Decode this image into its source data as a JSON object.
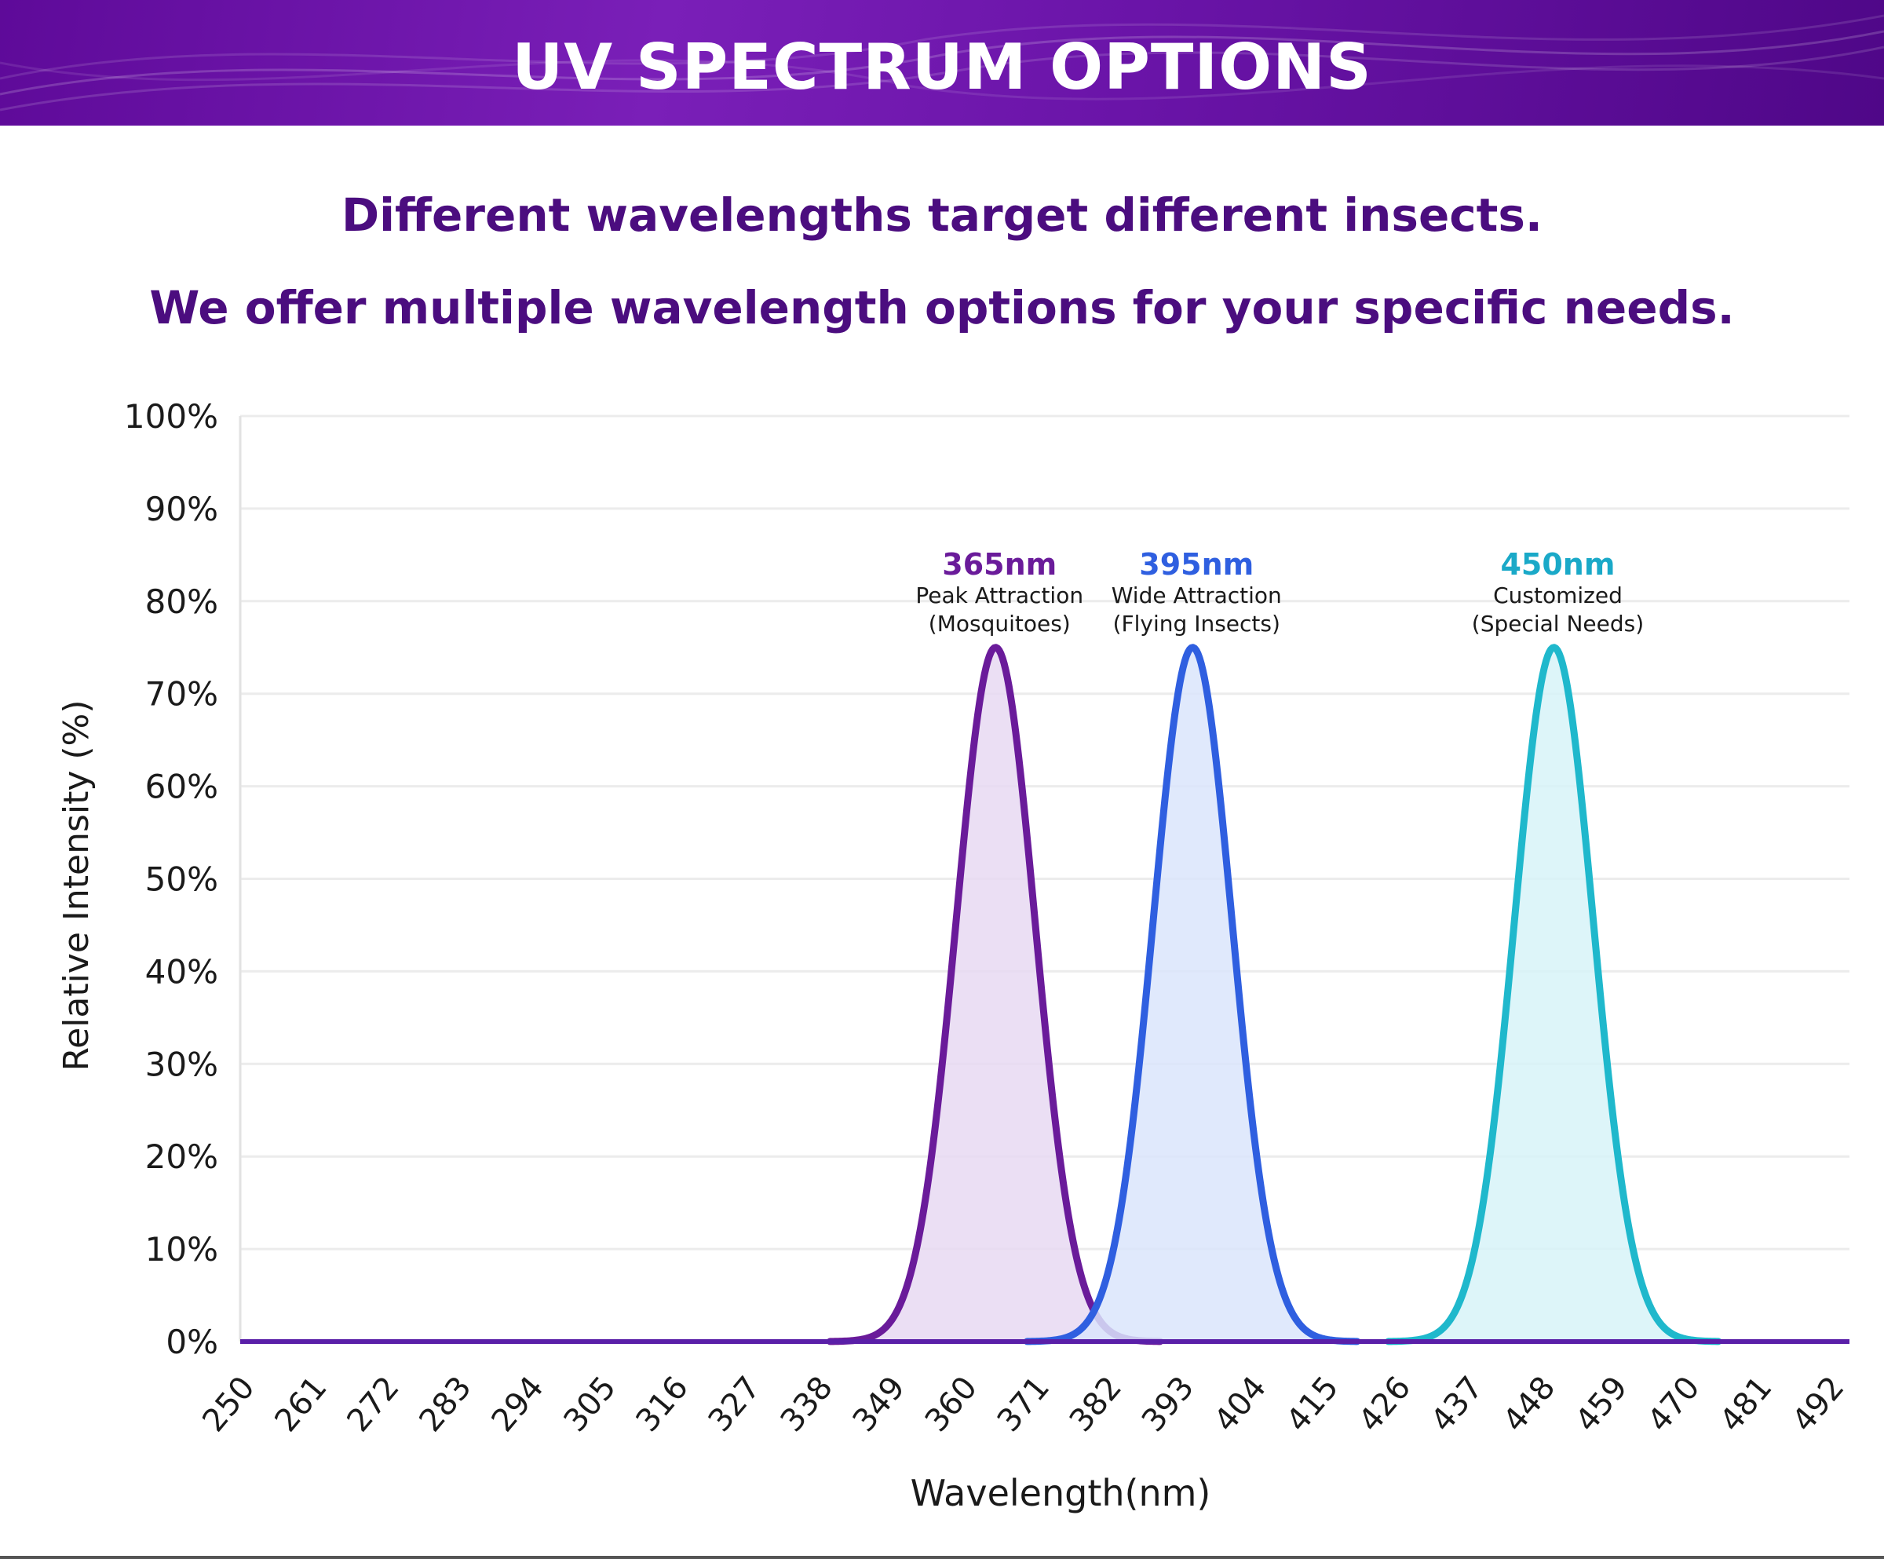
{
  "banner": {
    "title": "UV SPECTRUM OPTIONS"
  },
  "subtitle": {
    "line1": "Different wavelengths target different insects.",
    "line2": "We offer multiple wavelength options for your specific needs."
  },
  "chart_data": {
    "type": "area",
    "title": "",
    "xlabel": "Wavelength(nm)",
    "ylabel": "Relative Intensity (%)",
    "xlim": [
      250,
      495
    ],
    "ylim": [
      0,
      100
    ],
    "x_ticks": [
      250,
      261,
      272,
      283,
      294,
      305,
      316,
      327,
      338,
      349,
      360,
      371,
      382,
      393,
      404,
      415,
      426,
      437,
      448,
      459,
      470,
      481,
      492
    ],
    "y_ticks": [
      0,
      10,
      20,
      30,
      40,
      50,
      60,
      70,
      80,
      90,
      100
    ],
    "y_tick_labels": [
      "0%",
      "10%",
      "20%",
      "30%",
      "40%",
      "50%",
      "60%",
      "70%",
      "80%",
      "90%",
      "100%"
    ],
    "grid": true,
    "series": [
      {
        "name": "365nm",
        "peak_x": 365,
        "peak_y": 75,
        "sigma": 6,
        "color": "#6a1b9a",
        "fill": "#e8d9f2",
        "label_color": "#6a1b9a",
        "desc1": "Peak Attraction",
        "desc2": "(Mosquitoes)"
      },
      {
        "name": "395nm",
        "peak_x": 395,
        "peak_y": 75,
        "sigma": 6,
        "color": "#2f5fe0",
        "fill": "#dbe5fb",
        "label_color": "#2f5fe0",
        "desc1": "Wide Attraction",
        "desc2": "(Flying Insects)"
      },
      {
        "name": "450nm",
        "peak_x": 450,
        "peak_y": 75,
        "sigma": 6,
        "color": "#1fb8cc",
        "fill": "#d7f3f8",
        "label_color": "#1aa9c8",
        "desc1": "Customized",
        "desc2": "(Special Needs)"
      }
    ],
    "baseline_color": "#5a1fa8"
  }
}
